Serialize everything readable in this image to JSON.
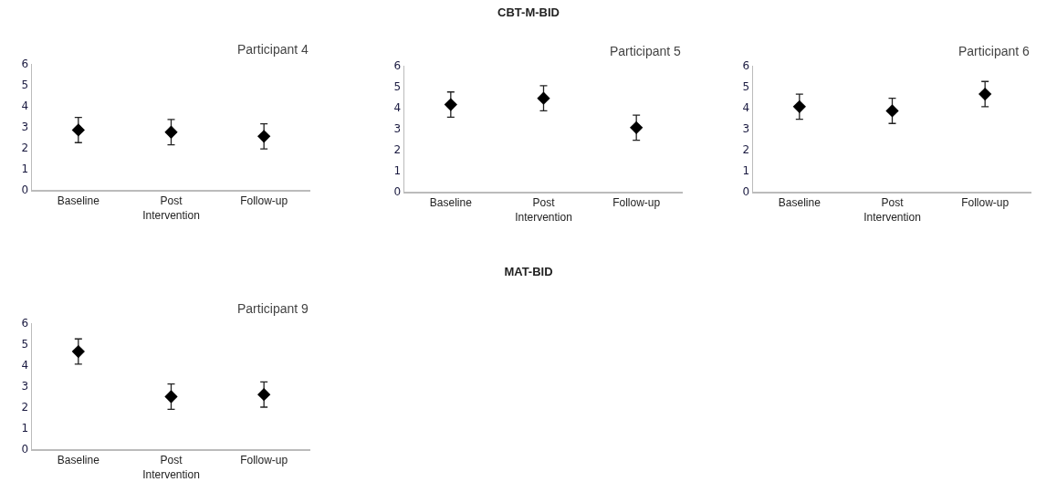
{
  "chart_data": [
    {
      "type": "other",
      "title": "CBT-M-BID"
    },
    {
      "type": "scatter",
      "annotations": [
        "Participant 4"
      ],
      "categories": [
        "Baseline",
        "Post\nIntervention",
        "Follow-up"
      ],
      "values": [
        2.85,
        2.75,
        2.55
      ],
      "errors": [
        0.6,
        0.6,
        0.6
      ],
      "color": "#000000",
      "marker": "diamond",
      "ylim": [
        0,
        6
      ],
      "yticks": [
        0,
        1,
        2,
        3,
        4,
        5,
        6
      ]
    },
    {
      "type": "scatter",
      "annotations": [
        "Participant 5"
      ],
      "categories": [
        "Baseline",
        "Post\nIntervention",
        "Follow-up"
      ],
      "values": [
        4.15,
        4.45,
        3.05
      ],
      "errors": [
        0.6,
        0.6,
        0.6
      ],
      "color": "#000000",
      "marker": "diamond",
      "ylim": [
        0,
        6
      ],
      "yticks": [
        0,
        1,
        2,
        3,
        4,
        5,
        6
      ]
    },
    {
      "type": "scatter",
      "annotations": [
        "Participant 6"
      ],
      "categories": [
        "Baseline",
        "Post\nIntervention",
        "Follow-up"
      ],
      "values": [
        4.05,
        3.85,
        4.65
      ],
      "errors": [
        0.6,
        0.6,
        0.6
      ],
      "color": "#000000",
      "marker": "diamond",
      "ylim": [
        0,
        6
      ],
      "yticks": [
        0,
        1,
        2,
        3,
        4,
        5,
        6
      ]
    },
    {
      "type": "other",
      "title": "MAT-BID"
    },
    {
      "type": "scatter",
      "annotations": [
        "Participant 9"
      ],
      "categories": [
        "Baseline",
        "Post\nIntervention",
        "Follow-up"
      ],
      "values": [
        4.65,
        2.5,
        2.6
      ],
      "errors": [
        0.6,
        0.6,
        0.6
      ],
      "color": "#000000",
      "marker": "diamond",
      "ylim": [
        0,
        6
      ],
      "yticks": [
        0,
        1,
        2,
        3,
        4,
        5,
        6
      ]
    }
  ]
}
